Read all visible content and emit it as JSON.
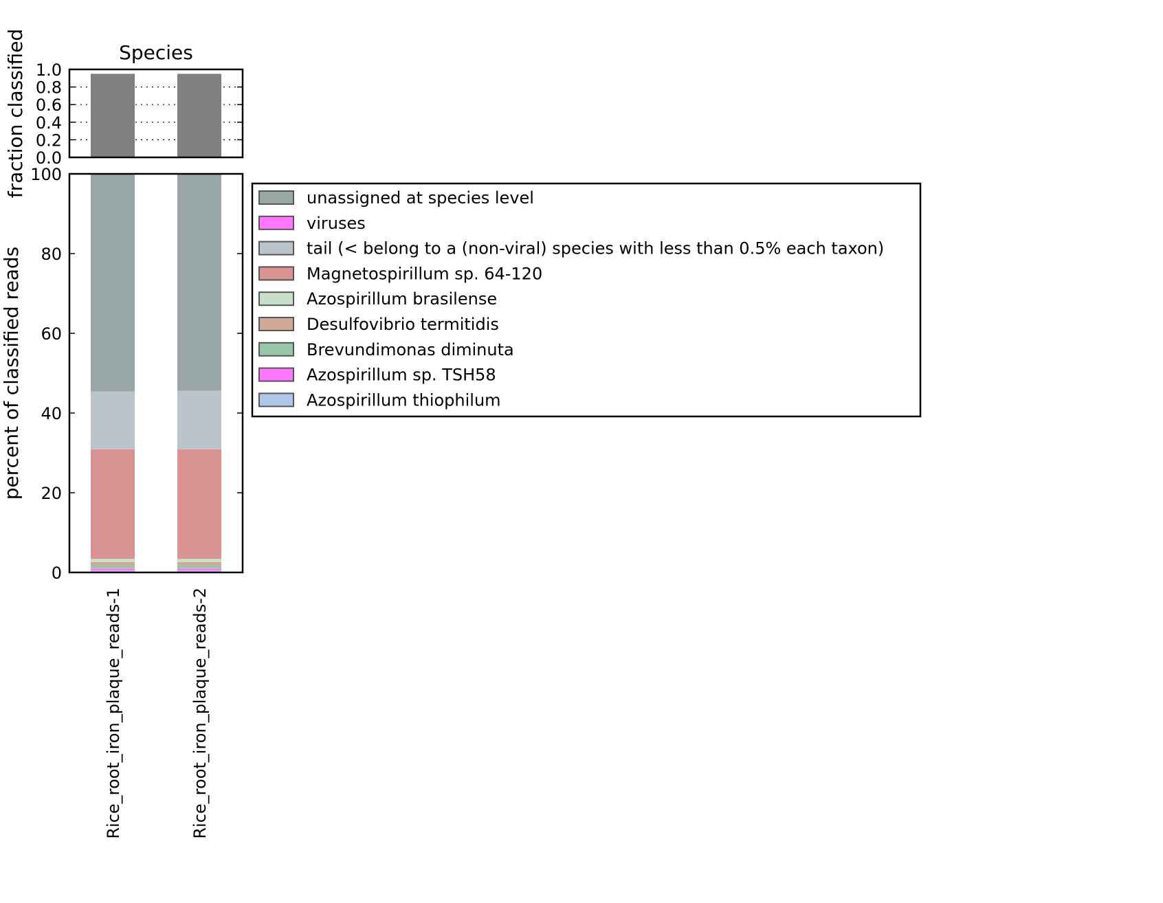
{
  "chart_data": [
    {
      "type": "bar",
      "title": "Species",
      "ylabel": "fraction classified",
      "xlabel": "",
      "ylim": [
        0,
        1
      ],
      "yticks": [
        "0.0",
        "0.2",
        "0.4",
        "0.6",
        "0.8",
        "1.0"
      ],
      "grid": "horizontal dotted",
      "categories": [
        "Rice_root_iron_plaque_reads-1",
        "Rice_root_iron_plaque_reads-2"
      ],
      "values": [
        0.95,
        0.95
      ],
      "color": "#808080"
    },
    {
      "type": "bar",
      "stacked": true,
      "ylabel": "percent of classified reads",
      "xlabel": "",
      "ylim": [
        0,
        100
      ],
      "yticks": [
        "0",
        "20",
        "40",
        "60",
        "80",
        "100"
      ],
      "legend_position": "right",
      "categories": [
        "Rice_root_iron_plaque_reads-1",
        "Rice_root_iron_plaque_reads-2"
      ],
      "series": [
        {
          "name": "Azospirillum thiophilum",
          "color": "#aec7e8",
          "values": [
            0.4,
            0.4
          ]
        },
        {
          "name": "Azospirillum sp. TSH58",
          "color": "#ff77ff",
          "values": [
            0.6,
            0.6
          ]
        },
        {
          "name": "Brevundimonas diminuta",
          "color": "#98c6a8",
          "values": [
            0.8,
            0.8
          ]
        },
        {
          "name": "Desulfovibrio termitidis",
          "color": "#cfa897",
          "values": [
            0.8,
            0.8
          ]
        },
        {
          "name": "Azospirillum brasilense",
          "color": "#c8dfc8",
          "values": [
            0.8,
            0.8
          ]
        },
        {
          "name": "Magnetospirillum sp. 64-120",
          "color": "#d99393",
          "values": [
            27.5,
            27.5
          ]
        },
        {
          "name": "tail (< belong to a (non-viral) species with less than 0.5% each taxon)",
          "color": "#bbc3cb",
          "values": [
            14.5,
            14.7
          ]
        },
        {
          "name": "viruses",
          "color": "#ff77ff",
          "values": [
            0.0,
            0.0
          ]
        },
        {
          "name": "unassigned at species level",
          "color": "#98a6a5",
          "values": [
            54.6,
            54.4
          ]
        }
      ]
    }
  ]
}
